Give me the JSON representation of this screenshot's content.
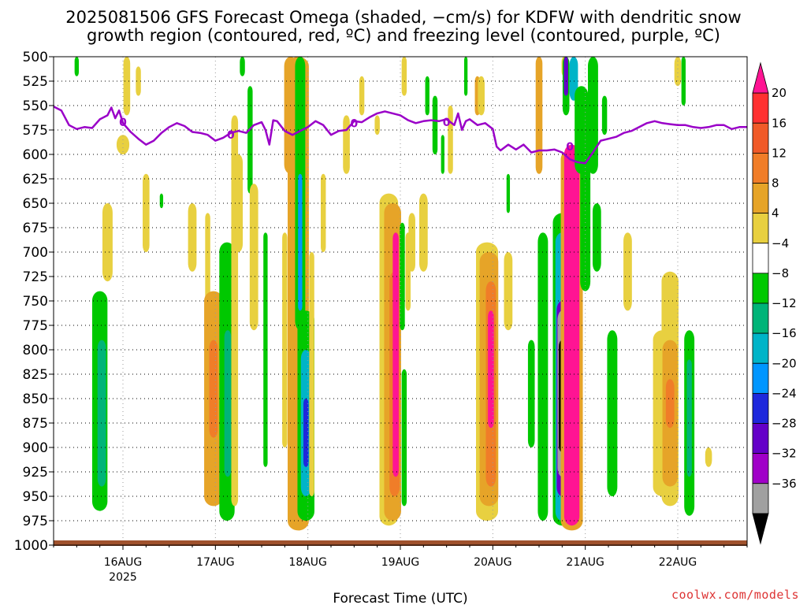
{
  "header": {
    "title_line1": "2025081506 GFS Forecast Omega (shaded, −cm/s) for KDFW with dendritic snow",
    "title_line2": "growth region (contoured, red, ºC) and freezing level (contoured, purple, ºC)"
  },
  "footer": {
    "credit": "coolwx.com/models"
  },
  "chart_data": {
    "type": "heatmap",
    "title": "2025081506 GFS Forecast Omega (shaded, −cm/s) for KDFW with dendritic snow growth region (contoured, red, ºC) and freezing level (contoured, purple, ºC)",
    "xlabel": "Forecast Time (UTC)",
    "ylabel": "",
    "y_axis": {
      "scale": "pressure (reversed)",
      "range": [
        500,
        1000
      ],
      "ticks": [
        500,
        525,
        550,
        575,
        600,
        625,
        650,
        675,
        700,
        725,
        750,
        775,
        800,
        825,
        850,
        875,
        900,
        925,
        950,
        975,
        1000
      ]
    },
    "x_axis": {
      "ticks": [
        {
          "label": "16AUG",
          "sub": "2025",
          "t": 18
        },
        {
          "label": "17AUG",
          "sub": "",
          "t": 42
        },
        {
          "label": "18AUG",
          "sub": "",
          "t": 66
        },
        {
          "label": "19AUG",
          "sub": "",
          "t": 90
        },
        {
          "label": "20AUG",
          "sub": "",
          "t": 114
        },
        {
          "label": "21AUG",
          "sub": "",
          "t": 138
        },
        {
          "label": "22AUG",
          "sub": "",
          "t": 162
        }
      ],
      "range": [
        0,
        180
      ],
      "units": "hours from 2025-08-15 06UTC"
    },
    "grid": true,
    "colorbar": {
      "position": "right",
      "labels": [
        "20",
        "16",
        "12",
        "8",
        "4",
        "−4",
        "−8",
        "−12",
        "−16",
        "−20",
        "−24",
        "−28",
        "−32",
        "−36"
      ],
      "colors": [
        "#ff1493",
        "#ff3030",
        "#f05a28",
        "#f07d28",
        "#e6a428",
        "#e8d040",
        "#ffffff",
        "#00c800",
        "#00b478",
        "#00b4c8",
        "#0096ff",
        "#1e28dc",
        "#6400c8",
        "#a000c8",
        "#a0a0a0",
        "#000000"
      ]
    },
    "freezing_level": {
      "label": "0",
      "color": "#9a00c8",
      "points": [
        [
          0,
          551
        ],
        [
          2,
          555
        ],
        [
          4,
          570
        ],
        [
          6,
          574
        ],
        [
          8,
          572
        ],
        [
          10,
          573
        ],
        [
          12,
          564
        ],
        [
          14,
          560
        ],
        [
          15,
          552
        ],
        [
          16,
          563
        ],
        [
          17,
          555
        ],
        [
          18,
          568
        ],
        [
          20,
          577
        ],
        [
          22,
          584
        ],
        [
          24,
          590
        ],
        [
          26,
          586
        ],
        [
          28,
          578
        ],
        [
          30,
          572
        ],
        [
          32,
          568
        ],
        [
          34,
          571
        ],
        [
          36,
          577
        ],
        [
          38,
          578
        ],
        [
          40,
          580
        ],
        [
          42,
          586
        ],
        [
          44,
          583
        ],
        [
          46,
          578
        ],
        [
          48,
          576
        ],
        [
          50,
          578
        ],
        [
          52,
          570
        ],
        [
          54,
          567
        ],
        [
          55,
          575
        ],
        [
          56,
          590
        ],
        [
          57,
          565
        ],
        [
          58,
          566
        ],
        [
          60,
          576
        ],
        [
          62,
          580
        ],
        [
          64,
          576
        ],
        [
          66,
          572
        ],
        [
          68,
          566
        ],
        [
          70,
          570
        ],
        [
          72,
          580
        ],
        [
          74,
          576
        ],
        [
          76,
          575
        ],
        [
          78,
          566
        ],
        [
          80,
          567
        ],
        [
          82,
          562
        ],
        [
          84,
          558
        ],
        [
          86,
          556
        ],
        [
          88,
          558
        ],
        [
          90,
          560
        ],
        [
          92,
          565
        ],
        [
          94,
          568
        ],
        [
          96,
          566
        ],
        [
          98,
          565
        ],
        [
          100,
          566
        ],
        [
          102,
          564
        ],
        [
          104,
          570
        ],
        [
          105,
          558
        ],
        [
          106,
          575
        ],
        [
          107,
          566
        ],
        [
          108,
          564
        ],
        [
          110,
          570
        ],
        [
          112,
          568
        ],
        [
          114,
          574
        ],
        [
          115,
          592
        ],
        [
          116,
          596
        ],
        [
          118,
          590
        ],
        [
          120,
          595
        ],
        [
          122,
          590
        ],
        [
          124,
          598
        ],
        [
          126,
          596
        ],
        [
          128,
          596
        ],
        [
          130,
          595
        ],
        [
          132,
          598
        ],
        [
          134,
          605
        ],
        [
          136,
          608
        ],
        [
          138,
          609
        ],
        [
          140,
          598
        ],
        [
          142,
          586
        ],
        [
          144,
          584
        ],
        [
          146,
          582
        ],
        [
          148,
          578
        ],
        [
          150,
          576
        ],
        [
          152,
          572
        ],
        [
          154,
          568
        ],
        [
          156,
          566
        ],
        [
          158,
          568
        ],
        [
          160,
          569
        ],
        [
          162,
          570
        ],
        [
          164,
          570
        ],
        [
          166,
          572
        ],
        [
          168,
          573
        ],
        [
          170,
          572
        ],
        [
          172,
          570
        ],
        [
          174,
          570
        ],
        [
          176,
          574
        ],
        [
          178,
          572
        ],
        [
          180,
          572
        ]
      ]
    },
    "freezing_level_labels": [
      [
        18,
        567
      ],
      [
        46,
        580
      ],
      [
        78,
        568
      ],
      [
        102,
        567
      ],
      [
        134,
        592
      ]
    ],
    "omega_columns": [
      {
        "t": 12,
        "p_top": 740,
        "p_bot": 965,
        "color": "#00c800",
        "w": 1.8
      },
      {
        "t": 12.5,
        "p_top": 790,
        "p_bot": 940,
        "color": "#00b478",
        "w": 1.0
      },
      {
        "t": 6,
        "p_top": 500,
        "p_bot": 520,
        "color": "#00c800",
        "w": 0.5
      },
      {
        "t": 14,
        "p_top": 650,
        "p_bot": 730,
        "color": "#e8d040",
        "w": 1.2
      },
      {
        "t": 19,
        "p_top": 500,
        "p_bot": 560,
        "color": "#e8d040",
        "w": 0.8
      },
      {
        "t": 22,
        "p_top": 510,
        "p_bot": 540,
        "color": "#e8d040",
        "w": 0.6
      },
      {
        "t": 18,
        "p_top": 580,
        "p_bot": 600,
        "color": "#e8d040",
        "w": 1.5
      },
      {
        "t": 24,
        "p_top": 620,
        "p_bot": 700,
        "color": "#e8d040",
        "w": 0.8
      },
      {
        "t": 28,
        "p_top": 640,
        "p_bot": 655,
        "color": "#00c800",
        "w": 0.4
      },
      {
        "t": 36,
        "p_top": 650,
        "p_bot": 720,
        "color": "#e8d040",
        "w": 1.0
      },
      {
        "t": 40,
        "p_top": 660,
        "p_bot": 780,
        "color": "#e8d040",
        "w": 0.6
      },
      {
        "t": 41.5,
        "p_top": 740,
        "p_bot": 960,
        "color": "#e6a428",
        "w": 2.2
      },
      {
        "t": 41.5,
        "p_top": 790,
        "p_bot": 890,
        "color": "#f07d28",
        "w": 1.0
      },
      {
        "t": 45,
        "p_top": 690,
        "p_bot": 975,
        "color": "#00c800",
        "w": 1.8
      },
      {
        "t": 45.2,
        "p_top": 780,
        "p_bot": 930,
        "color": "#00b478",
        "w": 0.8
      },
      {
        "t": 47,
        "p_top": 560,
        "p_bot": 960,
        "color": "#e8d040",
        "w": 0.8
      },
      {
        "t": 48,
        "p_top": 600,
        "p_bot": 700,
        "color": "#e8d040",
        "w": 1.0
      },
      {
        "t": 49,
        "p_top": 500,
        "p_bot": 520,
        "color": "#00c800",
        "w": 0.6
      },
      {
        "t": 51,
        "p_top": 530,
        "p_bot": 640,
        "color": "#00c800",
        "w": 0.6
      },
      {
        "t": 52,
        "p_top": 630,
        "p_bot": 780,
        "color": "#e8d040",
        "w": 1.0
      },
      {
        "t": 55,
        "p_top": 680,
        "p_bot": 920,
        "color": "#00c800",
        "w": 0.5
      },
      {
        "t": 60,
        "p_top": 680,
        "p_bot": 900,
        "color": "#e8d040",
        "w": 0.6
      },
      {
        "t": 61.5,
        "p_top": 500,
        "p_bot": 620,
        "color": "#e6a428",
        "w": 1.5
      },
      {
        "t": 63.5,
        "p_top": 500,
        "p_bot": 985,
        "color": "#e6a428",
        "w": 2.5
      },
      {
        "t": 64,
        "p_top": 500,
        "p_bot": 780,
        "color": "#00c800",
        "w": 1.2
      },
      {
        "t": 64,
        "p_top": 620,
        "p_bot": 760,
        "color": "#0096ff",
        "w": 0.5
      },
      {
        "t": 65.5,
        "p_top": 760,
        "p_bot": 975,
        "color": "#00c800",
        "w": 2.0
      },
      {
        "t": 65.5,
        "p_top": 800,
        "p_bot": 950,
        "color": "#00b4c8",
        "w": 1.2
      },
      {
        "t": 65.5,
        "p_top": 850,
        "p_bot": 920,
        "color": "#1e28dc",
        "w": 0.6
      },
      {
        "t": 67,
        "p_top": 700,
        "p_bot": 950,
        "color": "#e8d040",
        "w": 0.6
      },
      {
        "t": 70,
        "p_top": 620,
        "p_bot": 700,
        "color": "#e8d040",
        "w": 0.6
      },
      {
        "t": 76,
        "p_top": 560,
        "p_bot": 620,
        "color": "#e8d040",
        "w": 0.8
      },
      {
        "t": 80,
        "p_top": 520,
        "p_bot": 560,
        "color": "#e8d040",
        "w": 0.6
      },
      {
        "t": 84,
        "p_top": 560,
        "p_bot": 580,
        "color": "#e8d040",
        "w": 0.6
      },
      {
        "t": 87,
        "p_top": 640,
        "p_bot": 980,
        "color": "#e8d040",
        "w": 2.2
      },
      {
        "t": 88,
        "p_top": 650,
        "p_bot": 975,
        "color": "#e6a428",
        "w": 2.0
      },
      {
        "t": 88.5,
        "p_top": 720,
        "p_bot": 950,
        "color": "#f07d28",
        "w": 1.2
      },
      {
        "t": 88.8,
        "p_top": 680,
        "p_bot": 930,
        "color": "#ff1493",
        "w": 0.7
      },
      {
        "t": 90.5,
        "p_top": 670,
        "p_bot": 780,
        "color": "#00c800",
        "w": 0.6
      },
      {
        "t": 91,
        "p_top": 820,
        "p_bot": 960,
        "color": "#00c800",
        "w": 0.6
      },
      {
        "t": 91,
        "p_top": 500,
        "p_bot": 540,
        "color": "#e8d040",
        "w": 0.6
      },
      {
        "t": 92,
        "p_top": 680,
        "p_bot": 760,
        "color": "#e8d040",
        "w": 0.6
      },
      {
        "t": 93,
        "p_top": 660,
        "p_bot": 720,
        "color": "#e8d040",
        "w": 0.8
      },
      {
        "t": 96,
        "p_top": 640,
        "p_bot": 720,
        "color": "#e8d040",
        "w": 1.0
      },
      {
        "t": 97,
        "p_top": 520,
        "p_bot": 560,
        "color": "#00c800",
        "w": 0.5
      },
      {
        "t": 99,
        "p_top": 540,
        "p_bot": 600,
        "color": "#00c800",
        "w": 0.6
      },
      {
        "t": 101,
        "p_top": 580,
        "p_bot": 620,
        "color": "#00c800",
        "w": 0.4
      },
      {
        "t": 103,
        "p_top": 550,
        "p_bot": 620,
        "color": "#e8d040",
        "w": 0.6
      },
      {
        "t": 107,
        "p_top": 500,
        "p_bot": 540,
        "color": "#00c800",
        "w": 0.4
      },
      {
        "t": 110,
        "p_top": 520,
        "p_bot": 560,
        "color": "#e6a428",
        "w": 0.6
      },
      {
        "t": 111,
        "p_top": 520,
        "p_bot": 560,
        "color": "#e8d040",
        "w": 0.8
      },
      {
        "t": 112.5,
        "p_top": 690,
        "p_bot": 975,
        "color": "#e8d040",
        "w": 2.6
      },
      {
        "t": 113,
        "p_top": 700,
        "p_bot": 960,
        "color": "#e6a428",
        "w": 2.2
      },
      {
        "t": 113.5,
        "p_top": 730,
        "p_bot": 940,
        "color": "#f07d28",
        "w": 1.2
      },
      {
        "t": 113.5,
        "p_top": 760,
        "p_bot": 880,
        "color": "#ff1493",
        "w": 0.7
      },
      {
        "t": 118,
        "p_top": 700,
        "p_bot": 780,
        "color": "#e8d040",
        "w": 1.0
      },
      {
        "t": 118,
        "p_top": 620,
        "p_bot": 660,
        "color": "#00c800",
        "w": 0.4
      },
      {
        "t": 124,
        "p_top": 790,
        "p_bot": 900,
        "color": "#00c800",
        "w": 0.8
      },
      {
        "t": 126,
        "p_top": 500,
        "p_bot": 620,
        "color": "#e6a428",
        "w": 0.8
      },
      {
        "t": 127,
        "p_top": 680,
        "p_bot": 975,
        "color": "#00c800",
        "w": 1.2
      },
      {
        "t": 132,
        "p_top": 660,
        "p_bot": 980,
        "color": "#00c800",
        "w": 2.2
      },
      {
        "t": 132,
        "p_top": 680,
        "p_bot": 975,
        "color": "#00b4c8",
        "w": 1.6
      },
      {
        "t": 132,
        "p_top": 750,
        "p_bot": 950,
        "color": "#6400c8",
        "w": 1.3
      },
      {
        "t": 132,
        "p_top": 760,
        "p_bot": 930,
        "color": "#a0a0a0",
        "w": 1.1
      },
      {
        "t": 132,
        "p_top": 790,
        "p_bot": 905,
        "color": "#000000",
        "w": 0.8
      },
      {
        "t": 132.5,
        "p_top": 500,
        "p_bot": 520,
        "color": "#e8d040",
        "w": 0.6
      },
      {
        "t": 133,
        "p_top": 500,
        "p_bot": 560,
        "color": "#00c800",
        "w": 0.8
      },
      {
        "t": 133,
        "p_top": 500,
        "p_bot": 540,
        "color": "#6400c8",
        "w": 0.5
      },
      {
        "t": 134.5,
        "p_top": 595,
        "p_bot": 985,
        "color": "#e6a428",
        "w": 2.6
      },
      {
        "t": 134.5,
        "p_top": 590,
        "p_bot": 980,
        "color": "#ff1493",
        "w": 1.8
      },
      {
        "t": 135,
        "p_top": 500,
        "p_bot": 530,
        "color": "#6400c8",
        "w": 0.8
      },
      {
        "t": 135,
        "p_top": 500,
        "p_bot": 545,
        "color": "#00b4c8",
        "w": 1.0
      },
      {
        "t": 137,
        "p_top": 530,
        "p_bot": 620,
        "color": "#00c800",
        "w": 1.6
      },
      {
        "t": 138,
        "p_top": 580,
        "p_bot": 740,
        "color": "#00c800",
        "w": 1.2
      },
      {
        "t": 140,
        "p_top": 500,
        "p_bot": 620,
        "color": "#00c800",
        "w": 1.2
      },
      {
        "t": 141,
        "p_top": 650,
        "p_bot": 720,
        "color": "#00c800",
        "w": 1.0
      },
      {
        "t": 143,
        "p_top": 540,
        "p_bot": 580,
        "color": "#00c800",
        "w": 0.6
      },
      {
        "t": 145,
        "p_top": 780,
        "p_bot": 950,
        "color": "#00c800",
        "w": 1.2
      },
      {
        "t": 149,
        "p_top": 680,
        "p_bot": 760,
        "color": "#e8d040",
        "w": 1.0
      },
      {
        "t": 158,
        "p_top": 780,
        "p_bot": 950,
        "color": "#e8d040",
        "w": 2.2
      },
      {
        "t": 160,
        "p_top": 720,
        "p_bot": 960,
        "color": "#e8d040",
        "w": 2.0
      },
      {
        "t": 160,
        "p_top": 790,
        "p_bot": 940,
        "color": "#e6a428",
        "w": 1.8
      },
      {
        "t": 160,
        "p_top": 830,
        "p_bot": 880,
        "color": "#f07d28",
        "w": 1.0
      },
      {
        "t": 162,
        "p_top": 500,
        "p_bot": 530,
        "color": "#e8d040",
        "w": 0.8
      },
      {
        "t": 163.5,
        "p_top": 500,
        "p_bot": 550,
        "color": "#00c800",
        "w": 0.5
      },
      {
        "t": 165,
        "p_top": 780,
        "p_bot": 970,
        "color": "#00c800",
        "w": 1.2
      },
      {
        "t": 165,
        "p_top": 810,
        "p_bot": 930,
        "color": "#00b478",
        "w": 0.6
      },
      {
        "t": 170,
        "p_top": 900,
        "p_bot": 920,
        "color": "#e8d040",
        "w": 0.8
      }
    ]
  }
}
